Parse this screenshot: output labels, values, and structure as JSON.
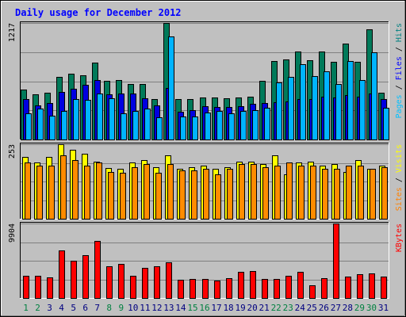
{
  "chart_data": [
    {
      "type": "bar",
      "title": "Daily usage for December 2012",
      "y_max_label": "1217",
      "ylim": [
        0,
        1217
      ],
      "side_label": [
        {
          "text": "Pages",
          "color": "#00c0ff"
        },
        {
          "text": " / ",
          "color": "#000000"
        },
        {
          "text": "Files",
          "color": "#0000ff"
        },
        {
          "text": " / ",
          "color": "#000000"
        },
        {
          "text": "Hits",
          "color": "#008080"
        }
      ],
      "categories": [
        "1",
        "2",
        "3",
        "4",
        "5",
        "6",
        "7",
        "8",
        "9",
        "10",
        "11",
        "12",
        "13",
        "14",
        "15",
        "16",
        "17",
        "18",
        "19",
        "20",
        "21",
        "22",
        "23",
        "24",
        "25",
        "26",
        "27",
        "28",
        "29",
        "30",
        "31"
      ],
      "series": [
        {
          "name": "Hits",
          "color": "#007a5a",
          "values": [
            520,
            470,
            490,
            650,
            690,
            670,
            800,
            610,
            620,
            580,
            580,
            420,
            1217,
            420,
            420,
            440,
            440,
            430,
            440,
            450,
            610,
            820,
            840,
            920,
            830,
            920,
            810,
            1000,
            810,
            1150,
            490
          ]
        },
        {
          "name": "Files",
          "color": "#0000e0",
          "values": [
            420,
            360,
            380,
            500,
            530,
            570,
            620,
            470,
            480,
            480,
            430,
            360,
            540,
            290,
            310,
            350,
            340,
            340,
            350,
            370,
            380,
            390,
            400,
            420,
            420,
            450,
            440,
            460,
            450,
            480,
            420
          ]
        },
        {
          "name": "Pages",
          "color": "#00b4ff",
          "values": [
            270,
            320,
            250,
            300,
            420,
            410,
            480,
            430,
            270,
            300,
            320,
            230,
            1080,
            240,
            240,
            280,
            300,
            270,
            300,
            310,
            330,
            600,
            650,
            790,
            660,
            710,
            580,
            820,
            620,
            910,
            330
          ]
        }
      ],
      "x_label_colors": [
        "#008040",
        "#008040",
        "#000080",
        "#000080",
        "#000080",
        "#000080",
        "#000080",
        "#008040",
        "#008040",
        "#000080",
        "#000080",
        "#000080",
        "#000080",
        "#000080",
        "#008040",
        "#008040",
        "#000080",
        "#000080",
        "#000080",
        "#000080",
        "#000080",
        "#008040",
        "#008040",
        "#000080",
        "#000080",
        "#000080",
        "#000080",
        "#000080",
        "#008040",
        "#008040",
        "#000080"
      ]
    },
    {
      "type": "bar",
      "y_max_label": "253",
      "ylim": [
        0,
        253
      ],
      "side_label": [
        {
          "text": "Sites",
          "color": "#ff8000"
        },
        {
          "text": " / ",
          "color": "#000000"
        },
        {
          "text": "Visits",
          "color": "#ffff00"
        }
      ],
      "series": [
        {
          "name": "Visits",
          "color": "#ffff00",
          "values": [
            210,
            190,
            210,
            253,
            235,
            220,
            193,
            172,
            170,
            190,
            200,
            175,
            215,
            170,
            175,
            180,
            170,
            175,
            195,
            195,
            185,
            215,
            150,
            190,
            195,
            180,
            185,
            160,
            200,
            170,
            180
          ]
        },
        {
          "name": "Sites",
          "color": "#ff8c00",
          "values": [
            190,
            180,
            180,
            215,
            200,
            180,
            190,
            160,
            155,
            175,
            185,
            155,
            185,
            165,
            165,
            170,
            150,
            170,
            185,
            185,
            175,
            180,
            190,
            180,
            180,
            170,
            170,
            180,
            180,
            170,
            175
          ]
        }
      ]
    },
    {
      "type": "bar",
      "y_max_label": "9904",
      "ylim": [
        0,
        9904
      ],
      "side_label": [
        {
          "text": "KBytes",
          "color": "#ff0000"
        }
      ],
      "series": [
        {
          "name": "KBytes",
          "color": "#ff0000",
          "values": [
            3000,
            2900,
            2700,
            6300,
            4900,
            5700,
            7600,
            4200,
            4500,
            3000,
            4000,
            4200,
            4700,
            2400,
            2500,
            2500,
            2300,
            2600,
            3500,
            3600,
            2500,
            2500,
            3000,
            3500,
            1700,
            2600,
            9904,
            2800,
            3200,
            3300,
            2800
          ]
        }
      ]
    }
  ]
}
